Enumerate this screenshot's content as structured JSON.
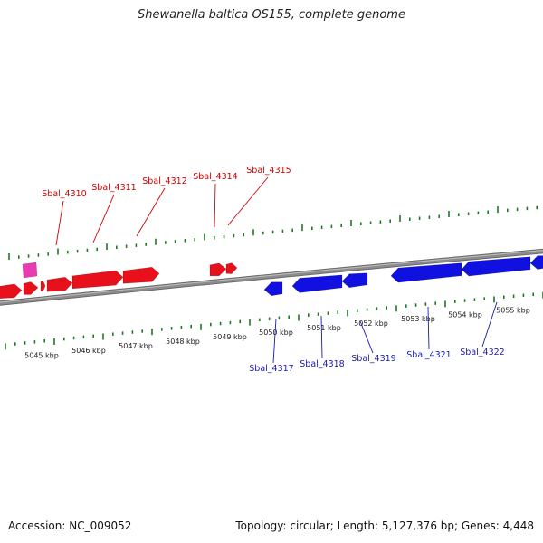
{
  "title": "Shewanella baltica OS155, complete genome",
  "accession_label": "Accession: NC_009052",
  "summary_label": "Topology: circular; Length: 5,127,376 bp; Genes: 4,448",
  "colors": {
    "forward_gene": "#e8101a",
    "reverse_gene": "#1010e0",
    "other_feature": "#e83cb0",
    "tick": "#1e7a1e",
    "backbone": "#8c8c8c",
    "label_forward": "#d40000",
    "label_reverse": "#1a1ab0"
  },
  "scale_labels": [
    "5045 kbp",
    "5046 kbp",
    "5047 kbp",
    "5048 kbp",
    "5049 kbp",
    "5050 kbp",
    "5051 kbp",
    "5052 kbp",
    "5053 kbp",
    "5054 kbp",
    "5055 kbp"
  ],
  "forward_gene_labels": [
    "Sbal_4310",
    "Sbal_4311",
    "Sbal_4312",
    "Sbal_4314",
    "Sbal_4315"
  ],
  "reverse_gene_labels": [
    "Sbal_4317",
    "Sbal_4318",
    "Sbal_4319",
    "Sbal_4321",
    "Sbal_4322"
  ]
}
